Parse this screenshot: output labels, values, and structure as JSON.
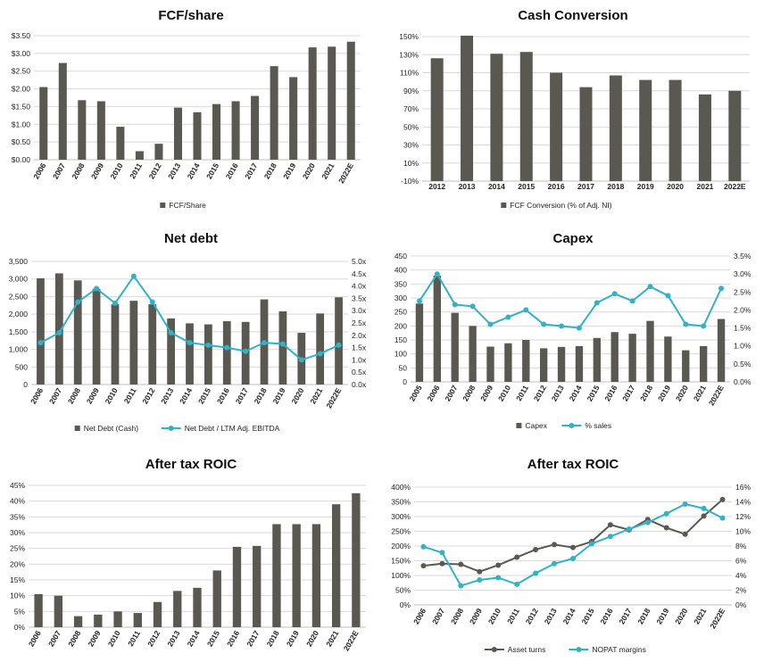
{
  "colors": {
    "bar": "#595952",
    "line_teal": "#2fb3c8",
    "line_dark": "#595952",
    "grid": "#d9d9d9"
  },
  "chart_data": [
    {
      "id": "fcf",
      "type": "bar",
      "title": "FCF/share",
      "categories": [
        "2006",
        "2007",
        "2008",
        "2009",
        "2010",
        "2011",
        "2012",
        "2013",
        "2014",
        "2015",
        "2016",
        "2017",
        "2018",
        "2019",
        "2020",
        "2021",
        "2022E"
      ],
      "series": [
        {
          "name": "FCF/Share",
          "values": [
            2.05,
            2.73,
            1.68,
            1.65,
            0.93,
            0.24,
            0.45,
            1.47,
            1.34,
            1.57,
            1.65,
            1.8,
            2.64,
            2.33,
            3.17,
            3.19,
            3.33
          ]
        }
      ],
      "ylim": [
        0,
        3.5
      ],
      "yticks": [
        "$0.00",
        "$0.50",
        "$1.00",
        "$1.50",
        "$2.00",
        "$2.50",
        "$3.00",
        "$3.50"
      ],
      "legend": "bottom",
      "grid": true
    },
    {
      "id": "conv",
      "type": "bar",
      "title": "Cash Conversion",
      "categories": [
        "2012",
        "2013",
        "2014",
        "2015",
        "2016",
        "2017",
        "2018",
        "2019",
        "2020",
        "2021",
        "2022E"
      ],
      "series": [
        {
          "name": "FCF Conversion (% of Adj. NI)",
          "values": [
            126,
            151,
            131,
            133,
            110,
            94,
            107,
            102,
            102,
            86,
            90
          ]
        }
      ],
      "ylim": [
        -10,
        150
      ],
      "yticks": [
        "-10%",
        "10%",
        "30%",
        "50%",
        "70%",
        "90%",
        "110%",
        "130%",
        "150%"
      ],
      "legend": "bottom",
      "grid": true
    },
    {
      "id": "netdebt",
      "type": "bar",
      "title": "Net debt",
      "categories": [
        "2006",
        "2007",
        "2008",
        "2009",
        "2010",
        "2011",
        "2012",
        "2013",
        "2014",
        "2015",
        "2016",
        "2017",
        "2018",
        "2019",
        "2020",
        "2021",
        "2022E"
      ],
      "series": [
        {
          "name": "Net Debt (Cash)",
          "values": [
            3020,
            3160,
            2960,
            2720,
            2280,
            2380,
            2280,
            1880,
            1740,
            1710,
            1800,
            1780,
            2420,
            2080,
            1470,
            2020,
            2480
          ]
        }
      ],
      "line_series": [
        {
          "name": "Net Debt / LTM Adj. EBITDA",
          "values": [
            1.7,
            2.1,
            3.35,
            3.9,
            3.3,
            4.4,
            3.35,
            2.1,
            1.7,
            1.6,
            1.5,
            1.35,
            1.7,
            1.65,
            1.0,
            1.25,
            1.6
          ]
        }
      ],
      "ylim": [
        0,
        3500
      ],
      "yticks": [
        "0",
        "500",
        "1,000",
        "1,500",
        "2,000",
        "2,500",
        "3,000",
        "3,500"
      ],
      "y2lim": [
        0,
        5
      ],
      "y2ticks": [
        "0.0x",
        "0.5x",
        "1.0x",
        "1.5x",
        "2.0x",
        "2.5x",
        "3.0x",
        "3.5x",
        "4.0x",
        "4.5x",
        "5.0x"
      ],
      "legend": "bottom",
      "grid": true
    },
    {
      "id": "capex",
      "type": "bar",
      "title": "Capex",
      "categories": [
        "2005",
        "2006",
        "2007",
        "2008",
        "2009",
        "2010",
        "2011",
        "2012",
        "2013",
        "2014",
        "2015",
        "2016",
        "2017",
        "2018",
        "2019",
        "2020",
        "2021",
        "2022E"
      ],
      "series": [
        {
          "name": "Capex",
          "values": [
            280,
            380,
            247,
            200,
            126,
            138,
            150,
            120,
            125,
            128,
            157,
            178,
            172,
            218,
            162,
            113,
            128,
            225
          ]
        }
      ],
      "line_series": [
        {
          "name": "% sales",
          "values": [
            2.25,
            3.0,
            2.15,
            2.1,
            1.6,
            1.8,
            2.0,
            1.6,
            1.55,
            1.5,
            2.2,
            2.45,
            2.25,
            2.65,
            2.4,
            1.6,
            1.55,
            2.6
          ]
        }
      ],
      "ylim": [
        0,
        450
      ],
      "yticks": [
        "0",
        "50",
        "100",
        "150",
        "200",
        "250",
        "300",
        "350",
        "400",
        "450"
      ],
      "y2lim": [
        0,
        3.5
      ],
      "y2ticks": [
        "0.0%",
        "0.5%",
        "1.0%",
        "1.5%",
        "2.0%",
        "2.5%",
        "3.0%",
        "3.5%"
      ],
      "legend": "bottom",
      "grid": true
    },
    {
      "id": "roic1",
      "type": "bar",
      "title": "After tax ROIC",
      "categories": [
        "2006",
        "2007",
        "2008",
        "2009",
        "2010",
        "2011",
        "2012",
        "2013",
        "2014",
        "2015",
        "2016",
        "2017",
        "2018",
        "2019",
        "2020",
        "2021",
        "2022E"
      ],
      "series": [
        {
          "name": "",
          "values": [
            10.5,
            10,
            3.5,
            4,
            5,
            4.5,
            8,
            11.5,
            12.5,
            18,
            25.5,
            25.8,
            32.7,
            32.7,
            32.7,
            39,
            42.5
          ]
        }
      ],
      "ylim": [
        0,
        45
      ],
      "yticks": [
        "0%",
        "5%",
        "10%",
        "15%",
        "20%",
        "25%",
        "30%",
        "35%",
        "40%",
        "45%"
      ],
      "legend": "none",
      "grid": true
    },
    {
      "id": "roic2",
      "type": "line",
      "title": "After tax ROIC",
      "categories": [
        "2006",
        "2007",
        "2008",
        "2009",
        "2010",
        "2011",
        "2012",
        "2013",
        "2014",
        "2015",
        "2016",
        "2017",
        "2018",
        "2019",
        "2020",
        "2021",
        "2022E"
      ],
      "series": [
        {
          "name": "Asset turns",
          "axis": "left",
          "values": [
            133,
            140,
            138,
            113,
            135,
            162,
            188,
            205,
            195,
            215,
            272,
            255,
            290,
            262,
            240,
            302,
            358
          ]
        },
        {
          "name": "NOPAT margins",
          "axis": "right",
          "values": [
            7.9,
            7.1,
            2.6,
            3.4,
            3.7,
            2.8,
            4.3,
            5.6,
            6.3,
            8.3,
            9.3,
            10.3,
            11.2,
            12.4,
            13.7,
            13.1,
            11.8
          ]
        }
      ],
      "ylim": [
        0,
        400
      ],
      "yticks": [
        "0%",
        "50%",
        "100%",
        "150%",
        "200%",
        "250%",
        "300%",
        "350%",
        "400%"
      ],
      "y2lim": [
        0,
        16
      ],
      "y2ticks": [
        "0%",
        "2%",
        "4%",
        "6%",
        "8%",
        "10%",
        "12%",
        "14%",
        "16%"
      ],
      "legend": "bottom",
      "grid": true
    }
  ]
}
